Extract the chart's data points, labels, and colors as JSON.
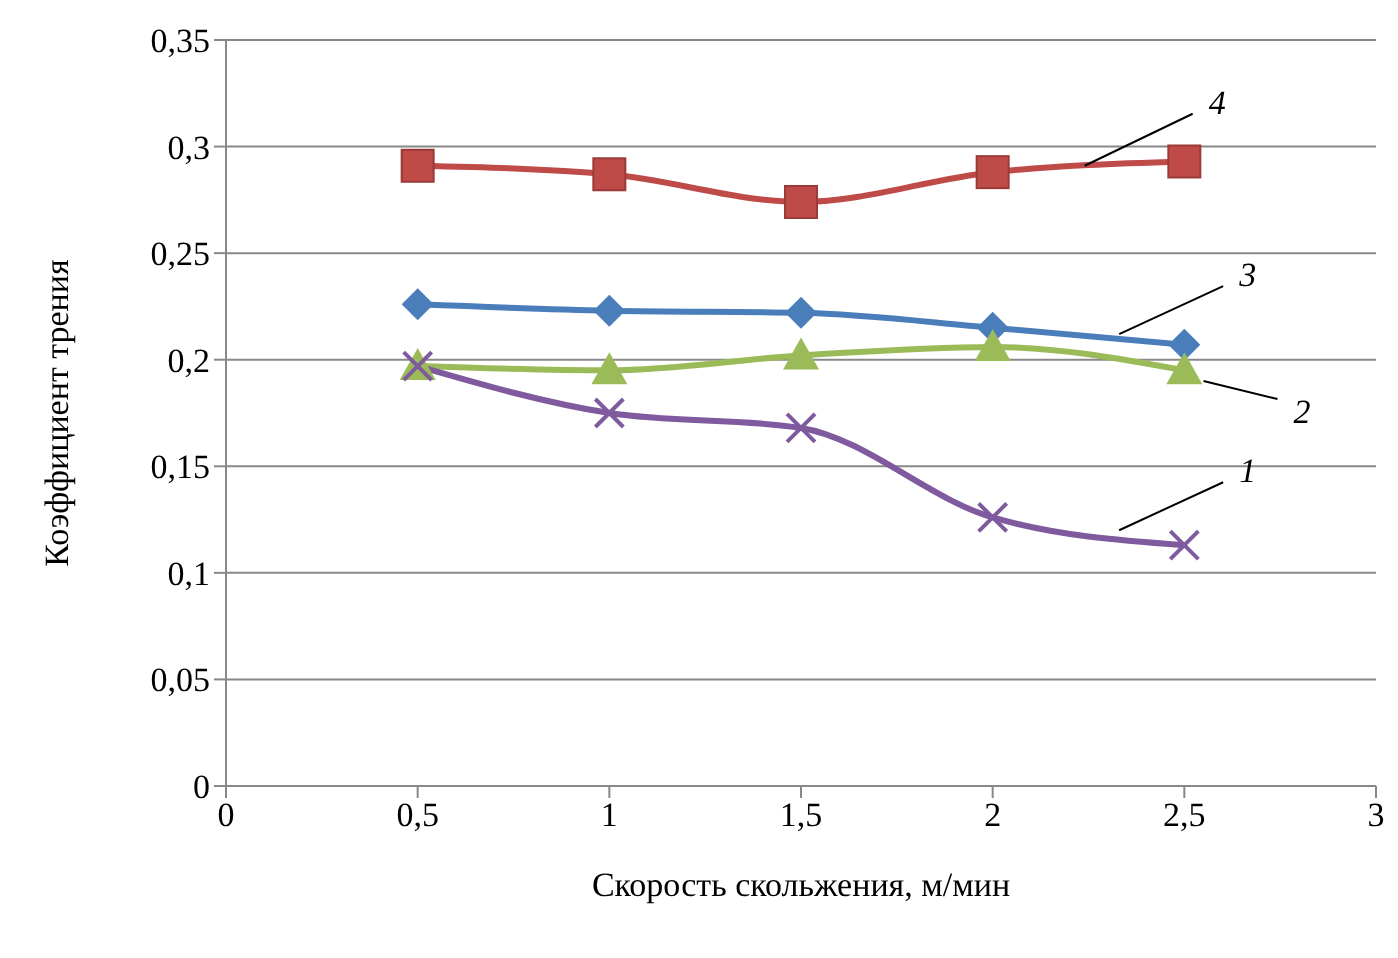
{
  "chart_data": {
    "type": "line",
    "xlabel": "Скорость скольжения, м/мин",
    "ylabel": "Коэффициент  трения",
    "x": [
      0.5,
      1,
      1.5,
      2,
      2.5
    ],
    "xlim": [
      0,
      3
    ],
    "xticks": [
      0,
      {
        "value": 0.5,
        "label": "0,5"
      },
      1,
      {
        "value": 1.5,
        "label": "1,5"
      },
      2,
      {
        "value": 2.5,
        "label": "2,5"
      },
      3
    ],
    "ylim": [
      0,
      0.35
    ],
    "yticks": [
      {
        "value": 0,
        "label": "0"
      },
      {
        "value": 0.05,
        "label": "0,05"
      },
      {
        "value": 0.1,
        "label": "0,1"
      },
      {
        "value": 0.15,
        "label": "0,15"
      },
      {
        "value": 0.2,
        "label": "0,2"
      },
      {
        "value": 0.25,
        "label": "0,25"
      },
      {
        "value": 0.3,
        "label": "0,3"
      },
      {
        "value": 0.35,
        "label": "0,35"
      }
    ],
    "grid": "y",
    "legend": false,
    "series": [
      {
        "color": "#7f5a9e",
        "marker": "cross",
        "values": [
          0.197,
          0.175,
          0.168,
          0.126,
          0.113
        ]
      },
      {
        "color": "#9bbb59",
        "marker": "triangle",
        "values": [
          0.197,
          0.195,
          0.202,
          0.206,
          0.195
        ]
      },
      {
        "color": "#4a7ebb",
        "marker": "diamond",
        "values": [
          0.226,
          0.223,
          0.222,
          0.215,
          0.207
        ]
      },
      {
        "color": "#be4b48",
        "marker": "square",
        "values": [
          0.291,
          0.287,
          0.274,
          0.288,
          0.293
        ]
      }
    ],
    "annotations": [
      {
        "text": "1",
        "x": 2.33,
        "y": 0.12
      },
      {
        "text": "2",
        "x": 2.55,
        "y": 0.19
      },
      {
        "text": "3",
        "x": 2.33,
        "y": 0.212
      },
      {
        "text": "4",
        "x": 2.24,
        "y": 0.291
      }
    ]
  }
}
